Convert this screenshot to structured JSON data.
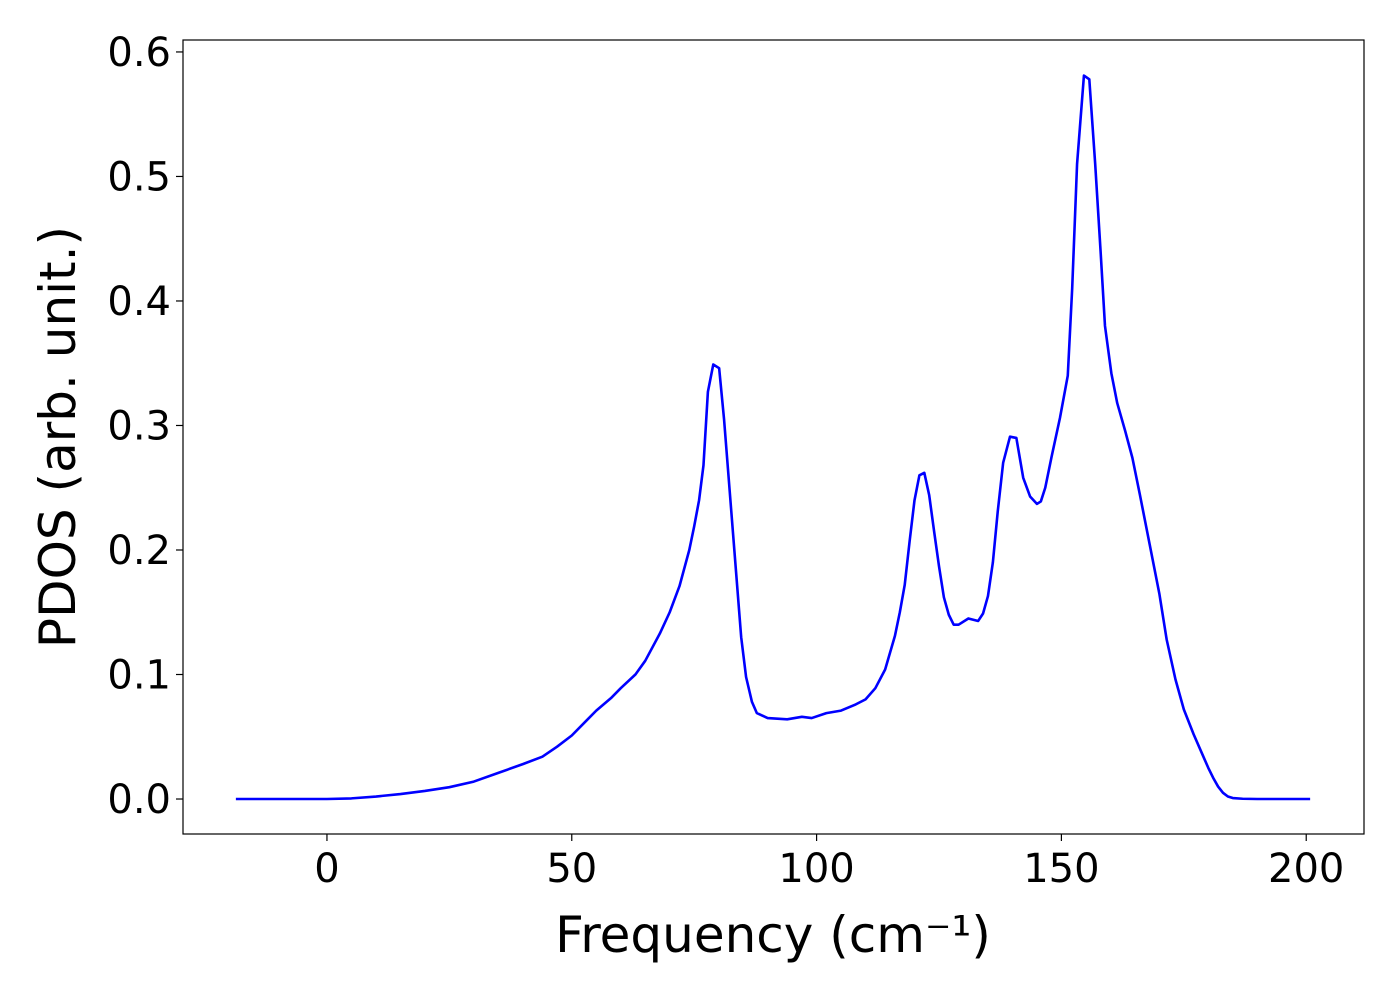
{
  "chart_data": {
    "type": "line",
    "xlabel": "Frequency (cm⁻¹)",
    "ylabel": "PDOS (arb. unit.)",
    "x": [
      -18.6,
      0,
      5,
      10,
      15,
      20,
      25,
      30,
      35,
      40,
      44,
      47,
      50,
      53,
      55,
      58,
      60,
      63,
      65,
      68,
      70,
      72,
      74,
      75,
      76,
      76.9,
      77.8,
      78.9,
      80.1,
      81.1,
      82.3,
      83.6,
      84.6,
      85.6,
      86.8,
      87.8,
      90,
      94,
      97,
      99,
      102,
      105,
      108,
      110,
      112,
      114,
      116,
      117,
      118,
      119,
      120,
      121,
      122,
      123,
      124,
      125,
      126,
      127,
      128,
      129,
      131,
      133,
      134,
      135,
      136,
      137,
      138.1,
      139.5,
      140.8,
      142.2,
      143.6,
      145,
      145.8,
      146.7,
      148,
      149.7,
      151.3,
      152.2,
      153.2,
      154.6,
      155.7,
      156.9,
      158,
      158.9,
      160.2,
      161.4,
      163,
      164.5,
      166,
      168,
      170,
      171.5,
      173.3,
      175,
      177,
      179,
      180,
      181,
      182,
      183,
      184,
      185,
      187,
      190,
      200.8
    ],
    "series": [
      {
        "color": "#0000ff",
        "values": [
          0,
          0,
          0.0005,
          0.002,
          0.004,
          0.0065,
          0.0095,
          0.014,
          0.021,
          0.028,
          0.034,
          0.042,
          0.051,
          0.063,
          0.071,
          0.081,
          0.089,
          0.1,
          0.111,
          0.133,
          0.15,
          0.171,
          0.2,
          0.219,
          0.24,
          0.268,
          0.327,
          0.349,
          0.346,
          0.305,
          0.245,
          0.18,
          0.13,
          0.098,
          0.078,
          0.069,
          0.065,
          0.064,
          0.066,
          0.065,
          0.069,
          0.071,
          0.076,
          0.08,
          0.089,
          0.104,
          0.131,
          0.15,
          0.172,
          0.207,
          0.24,
          0.26,
          0.262,
          0.244,
          0.215,
          0.187,
          0.162,
          0.148,
          0.14,
          0.14,
          0.145,
          0.143,
          0.149,
          0.163,
          0.19,
          0.231,
          0.27,
          0.291,
          0.29,
          0.258,
          0.243,
          0.237,
          0.239,
          0.25,
          0.275,
          0.306,
          0.34,
          0.41,
          0.51,
          0.581,
          0.578,
          0.51,
          0.44,
          0.38,
          0.342,
          0.318,
          0.296,
          0.274,
          0.245,
          0.205,
          0.165,
          0.128,
          0.096,
          0.072,
          0.052,
          0.034,
          0.025,
          0.017,
          0.01,
          0.005,
          0.002,
          0.0008,
          0.0002,
          0,
          0
        ]
      }
    ],
    "xlim": [
      -29.4,
      211.8
    ],
    "ylim": [
      -0.0281,
      0.6096
    ],
    "xticks": [
      0,
      50,
      100,
      150,
      200
    ],
    "yticks": [
      {
        "value": 0,
        "label": "0.0"
      },
      0.1,
      0.2,
      0.3,
      0.4,
      0.5,
      0.6
    ],
    "grid": false
  }
}
